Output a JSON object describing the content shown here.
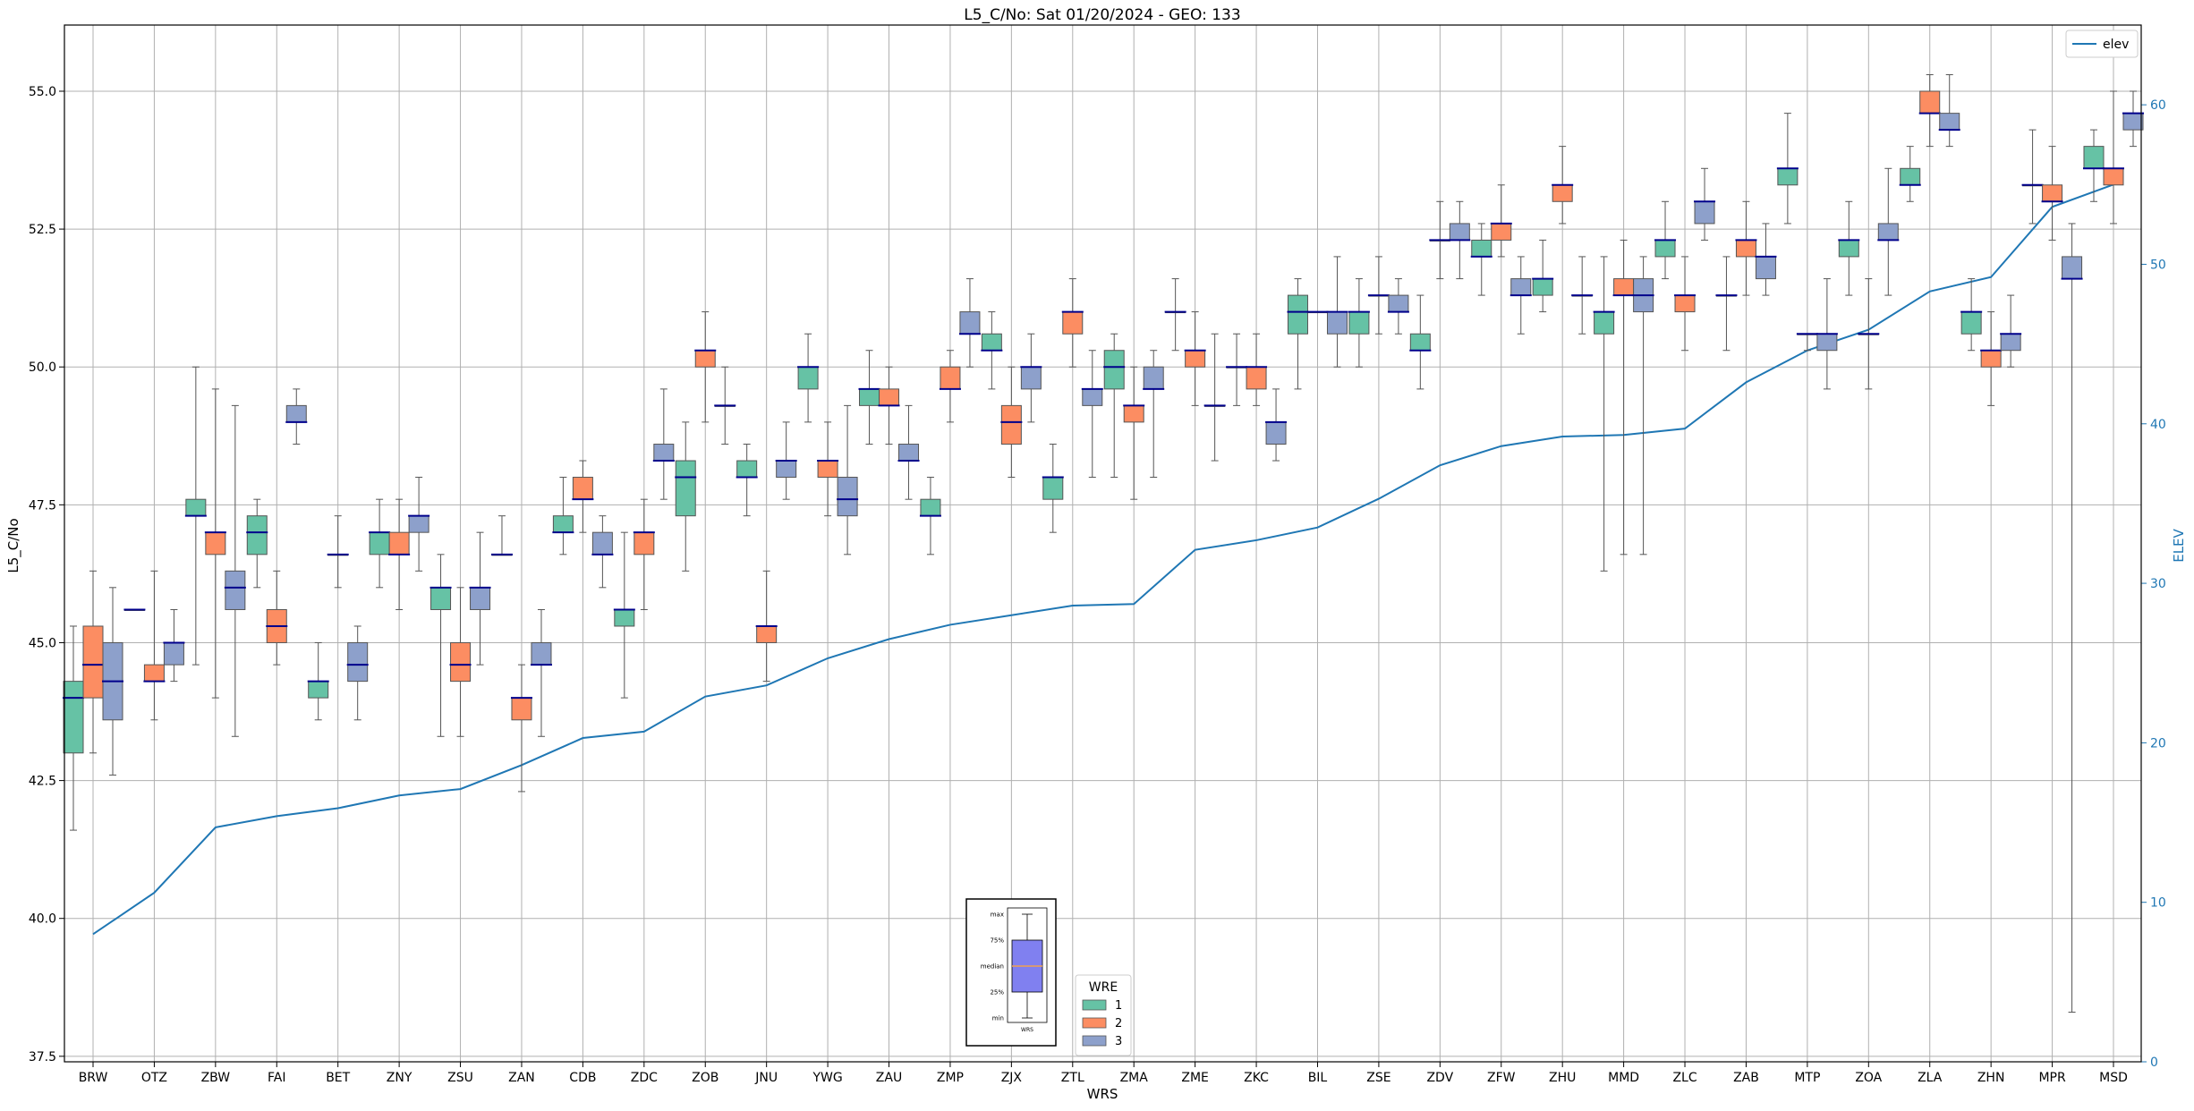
{
  "chart_data": {
    "type": "box",
    "title": "L5_C/No: Sat 01/20/2024 - GEO: 133",
    "xlabel": "WRS",
    "ylabel": "L5_C/No",
    "y2label": "ELEV",
    "ylim": [
      37.4,
      56.2
    ],
    "y2lim": [
      0,
      65
    ],
    "yticks": [
      "37.5",
      "40.0",
      "42.5",
      "45.0",
      "47.5",
      "50.0",
      "52.5",
      "55.0"
    ],
    "y2ticks": [
      "0",
      "10",
      "20",
      "30",
      "40",
      "50",
      "60"
    ],
    "grid": true,
    "categories": [
      "BRW",
      "OTZ",
      "ZBW",
      "FAI",
      "BET",
      "ZNY",
      "ZSU",
      "ZAN",
      "CDB",
      "ZDC",
      "ZOB",
      "JNU",
      "YWG",
      "ZAU",
      "ZMP",
      "ZJX",
      "ZTL",
      "ZMA",
      "ZME",
      "ZKC",
      "BIL",
      "ZSE",
      "ZDV",
      "ZFW",
      "ZHU",
      "MMD",
      "ZLC",
      "ZAB",
      "MTP",
      "ZOA",
      "ZLA",
      "ZHN",
      "MPR",
      "MSD"
    ],
    "wre_colors": {
      "1": "#66c2a5",
      "2": "#fc8d62",
      "3": "#8da0cb"
    },
    "line_series": {
      "name": "elev",
      "color": "#1f77b4",
      "values": [
        8.0,
        10.6,
        14.7,
        15.4,
        15.9,
        16.7,
        17.1,
        18.6,
        20.3,
        20.7,
        22.9,
        23.6,
        25.3,
        26.5,
        27.4,
        28.0,
        28.6,
        28.7,
        32.1,
        32.7,
        33.5,
        35.3,
        37.4,
        38.6,
        39.2,
        39.3,
        39.7,
        42.6,
        44.6,
        45.9,
        48.3,
        49.2,
        53.6,
        55.0
      ]
    },
    "boxes": [
      {
        "station": "BRW",
        "wre": 1,
        "min": 41.6,
        "q1": 43.0,
        "median": 44.0,
        "q3": 44.3,
        "max": 45.3
      },
      {
        "station": "BRW",
        "wre": 2,
        "min": 43.0,
        "q1": 44.0,
        "median": 44.6,
        "q3": 45.3,
        "max": 46.3
      },
      {
        "station": "BRW",
        "wre": 3,
        "min": 42.6,
        "q1": 43.6,
        "median": 44.3,
        "q3": 45.0,
        "max": 46.0
      },
      {
        "station": "OTZ",
        "wre": 1,
        "min": 45.6,
        "q1": 45.6,
        "median": 45.6,
        "q3": 45.6,
        "max": 45.6
      },
      {
        "station": "OTZ",
        "wre": 2,
        "min": 43.6,
        "q1": 44.3,
        "median": 44.3,
        "q3": 44.6,
        "max": 46.3
      },
      {
        "station": "OTZ",
        "wre": 3,
        "min": 44.3,
        "q1": 44.6,
        "median": 45.0,
        "q3": 45.0,
        "max": 45.6
      },
      {
        "station": "ZBW",
        "wre": 1,
        "min": 44.6,
        "q1": 47.3,
        "median": 47.3,
        "q3": 47.6,
        "max": 50.0
      },
      {
        "station": "ZBW",
        "wre": 2,
        "min": 44.0,
        "q1": 46.6,
        "median": 47.0,
        "q3": 47.0,
        "max": 49.6
      },
      {
        "station": "ZBW",
        "wre": 3,
        "min": 43.3,
        "q1": 45.6,
        "median": 46.0,
        "q3": 46.3,
        "max": 49.3
      },
      {
        "station": "FAI",
        "wre": 1,
        "min": 46.0,
        "q1": 46.6,
        "median": 47.0,
        "q3": 47.3,
        "max": 47.6
      },
      {
        "station": "FAI",
        "wre": 2,
        "min": 44.6,
        "q1": 45.0,
        "median": 45.3,
        "q3": 45.6,
        "max": 46.3
      },
      {
        "station": "FAI",
        "wre": 3,
        "min": 48.6,
        "q1": 49.0,
        "median": 49.0,
        "q3": 49.3,
        "max": 49.6
      },
      {
        "station": "BET",
        "wre": 1,
        "min": 43.6,
        "q1": 44.0,
        "median": 44.3,
        "q3": 44.3,
        "max": 45.0
      },
      {
        "station": "BET",
        "wre": 2,
        "min": 46.0,
        "q1": 46.6,
        "median": 46.6,
        "q3": 46.6,
        "max": 47.3
      },
      {
        "station": "BET",
        "wre": 3,
        "min": 43.6,
        "q1": 44.3,
        "median": 44.6,
        "q3": 45.0,
        "max": 45.3
      },
      {
        "station": "ZNY",
        "wre": 1,
        "min": 46.0,
        "q1": 46.6,
        "median": 47.0,
        "q3": 47.0,
        "max": 47.6
      },
      {
        "station": "ZNY",
        "wre": 2,
        "min": 45.6,
        "q1": 46.6,
        "median": 46.6,
        "q3": 47.0,
        "max": 47.6
      },
      {
        "station": "ZNY",
        "wre": 3,
        "min": 46.3,
        "q1": 47.0,
        "median": 47.3,
        "q3": 47.3,
        "max": 48.0
      },
      {
        "station": "ZSU",
        "wre": 1,
        "min": 43.3,
        "q1": 45.6,
        "median": 46.0,
        "q3": 46.0,
        "max": 46.6
      },
      {
        "station": "ZSU",
        "wre": 2,
        "min": 43.3,
        "q1": 44.3,
        "median": 44.6,
        "q3": 45.0,
        "max": 46.0
      },
      {
        "station": "ZSU",
        "wre": 3,
        "min": 44.6,
        "q1": 45.6,
        "median": 46.0,
        "q3": 46.0,
        "max": 47.0
      },
      {
        "station": "ZAN",
        "wre": 1,
        "min": 46.6,
        "q1": 46.6,
        "median": 46.6,
        "q3": 46.6,
        "max": 47.3
      },
      {
        "station": "ZAN",
        "wre": 2,
        "min": 42.3,
        "q1": 43.6,
        "median": 44.0,
        "q3": 44.0,
        "max": 44.6
      },
      {
        "station": "ZAN",
        "wre": 3,
        "min": 43.3,
        "q1": 44.6,
        "median": 44.6,
        "q3": 45.0,
        "max": 45.6
      },
      {
        "station": "CDB",
        "wre": 1,
        "min": 46.6,
        "q1": 47.0,
        "median": 47.0,
        "q3": 47.3,
        "max": 48.0
      },
      {
        "station": "CDB",
        "wre": 2,
        "min": 47.0,
        "q1": 47.6,
        "median": 47.6,
        "q3": 48.0,
        "max": 48.3
      },
      {
        "station": "CDB",
        "wre": 3,
        "min": 46.0,
        "q1": 46.6,
        "median": 46.6,
        "q3": 47.0,
        "max": 47.3
      },
      {
        "station": "ZDC",
        "wre": 1,
        "min": 44.0,
        "q1": 45.3,
        "median": 45.6,
        "q3": 45.6,
        "max": 47.0
      },
      {
        "station": "ZDC",
        "wre": 2,
        "min": 45.6,
        "q1": 46.6,
        "median": 47.0,
        "q3": 47.0,
        "max": 47.6
      },
      {
        "station": "ZDC",
        "wre": 3,
        "min": 47.6,
        "q1": 48.3,
        "median": 48.3,
        "q3": 48.6,
        "max": 49.6
      },
      {
        "station": "ZOB",
        "wre": 1,
        "min": 46.3,
        "q1": 47.3,
        "median": 48.0,
        "q3": 48.3,
        "max": 49.0
      },
      {
        "station": "ZOB",
        "wre": 2,
        "min": 49.0,
        "q1": 50.0,
        "median": 50.3,
        "q3": 50.3,
        "max": 51.0
      },
      {
        "station": "ZOB",
        "wre": 3,
        "min": 48.6,
        "q1": 49.3,
        "median": 49.3,
        "q3": 49.3,
        "max": 50.0
      },
      {
        "station": "JNU",
        "wre": 1,
        "min": 47.3,
        "q1": 48.0,
        "median": 48.0,
        "q3": 48.3,
        "max": 48.6
      },
      {
        "station": "JNU",
        "wre": 2,
        "min": 44.3,
        "q1": 45.0,
        "median": 45.3,
        "q3": 45.3,
        "max": 46.3
      },
      {
        "station": "JNU",
        "wre": 3,
        "min": 47.6,
        "q1": 48.0,
        "median": 48.3,
        "q3": 48.3,
        "max": 49.0
      },
      {
        "station": "YWG",
        "wre": 1,
        "min": 49.0,
        "q1": 49.6,
        "median": 50.0,
        "q3": 50.0,
        "max": 50.6
      },
      {
        "station": "YWG",
        "wre": 2,
        "min": 47.3,
        "q1": 48.0,
        "median": 48.3,
        "q3": 48.3,
        "max": 49.0
      },
      {
        "station": "YWG",
        "wre": 3,
        "min": 46.6,
        "q1": 47.3,
        "median": 47.6,
        "q3": 48.0,
        "max": 49.3
      },
      {
        "station": "ZAU",
        "wre": 1,
        "min": 48.6,
        "q1": 49.3,
        "median": 49.6,
        "q3": 49.6,
        "max": 50.3
      },
      {
        "station": "ZAU",
        "wre": 2,
        "min": 48.6,
        "q1": 49.3,
        "median": 49.3,
        "q3": 49.6,
        "max": 50.0
      },
      {
        "station": "ZAU",
        "wre": 3,
        "min": 47.6,
        "q1": 48.3,
        "median": 48.3,
        "q3": 48.6,
        "max": 49.3
      },
      {
        "station": "ZMP",
        "wre": 1,
        "min": 46.6,
        "q1": 47.3,
        "median": 47.3,
        "q3": 47.6,
        "max": 48.0
      },
      {
        "station": "ZMP",
        "wre": 2,
        "min": 49.0,
        "q1": 49.6,
        "median": 49.6,
        "q3": 50.0,
        "max": 50.3
      },
      {
        "station": "ZMP",
        "wre": 3,
        "min": 50.0,
        "q1": 50.6,
        "median": 50.6,
        "q3": 51.0,
        "max": 51.6
      },
      {
        "station": "ZJX",
        "wre": 1,
        "min": 49.6,
        "q1": 50.3,
        "median": 50.3,
        "q3": 50.6,
        "max": 51.0
      },
      {
        "station": "ZJX",
        "wre": 2,
        "min": 48.0,
        "q1": 48.6,
        "median": 49.0,
        "q3": 49.3,
        "max": 50.0
      },
      {
        "station": "ZJX",
        "wre": 3,
        "min": 49.0,
        "q1": 49.6,
        "median": 50.0,
        "q3": 50.0,
        "max": 50.6
      },
      {
        "station": "ZTL",
        "wre": 1,
        "min": 47.0,
        "q1": 47.6,
        "median": 48.0,
        "q3": 48.0,
        "max": 48.6
      },
      {
        "station": "ZTL",
        "wre": 2,
        "min": 50.0,
        "q1": 50.6,
        "median": 51.0,
        "q3": 51.0,
        "max": 51.6
      },
      {
        "station": "ZTL",
        "wre": 3,
        "min": 48.0,
        "q1": 49.3,
        "median": 49.6,
        "q3": 49.6,
        "max": 50.3
      },
      {
        "station": "ZMA",
        "wre": 1,
        "min": 48.0,
        "q1": 49.6,
        "median": 50.0,
        "q3": 50.3,
        "max": 50.6
      },
      {
        "station": "ZMA",
        "wre": 2,
        "min": 47.6,
        "q1": 49.0,
        "median": 49.3,
        "q3": 49.3,
        "max": 50.0
      },
      {
        "station": "ZMA",
        "wre": 3,
        "min": 48.0,
        "q1": 49.6,
        "median": 49.6,
        "q3": 50.0,
        "max": 50.3
      },
      {
        "station": "ZME",
        "wre": 1,
        "min": 50.3,
        "q1": 51.0,
        "median": 51.0,
        "q3": 51.0,
        "max": 51.6
      },
      {
        "station": "ZME",
        "wre": 2,
        "min": 49.3,
        "q1": 50.0,
        "median": 50.3,
        "q3": 50.3,
        "max": 51.0
      },
      {
        "station": "ZME",
        "wre": 3,
        "min": 48.3,
        "q1": 49.3,
        "median": 49.3,
        "q3": 49.3,
        "max": 50.6
      },
      {
        "station": "ZKC",
        "wre": 1,
        "min": 49.3,
        "q1": 50.0,
        "median": 50.0,
        "q3": 50.0,
        "max": 50.6
      },
      {
        "station": "ZKC",
        "wre": 2,
        "min": 49.3,
        "q1": 49.6,
        "median": 50.0,
        "q3": 50.0,
        "max": 50.6
      },
      {
        "station": "ZKC",
        "wre": 3,
        "min": 48.3,
        "q1": 48.6,
        "median": 49.0,
        "q3": 49.0,
        "max": 49.6
      },
      {
        "station": "BIL",
        "wre": 1,
        "min": 49.6,
        "q1": 50.6,
        "median": 51.0,
        "q3": 51.3,
        "max": 51.6
      },
      {
        "station": "BIL",
        "wre": 2,
        "min": 51.0,
        "q1": 51.0,
        "median": 51.0,
        "q3": 51.0,
        "max": 51.0
      },
      {
        "station": "BIL",
        "wre": 3,
        "min": 50.0,
        "q1": 50.6,
        "median": 51.0,
        "q3": 51.0,
        "max": 52.0
      },
      {
        "station": "ZSE",
        "wre": 1,
        "min": 50.0,
        "q1": 50.6,
        "median": 51.0,
        "q3": 51.0,
        "max": 51.6
      },
      {
        "station": "ZSE",
        "wre": 2,
        "min": 50.6,
        "q1": 51.3,
        "median": 51.3,
        "q3": 51.3,
        "max": 52.0
      },
      {
        "station": "ZSE",
        "wre": 3,
        "min": 50.6,
        "q1": 51.0,
        "median": 51.0,
        "q3": 51.3,
        "max": 51.6
      },
      {
        "station": "ZDV",
        "wre": 1,
        "min": 49.6,
        "q1": 50.3,
        "median": 50.3,
        "q3": 50.6,
        "max": 51.3
      },
      {
        "station": "ZDV",
        "wre": 2,
        "min": 51.6,
        "q1": 52.3,
        "median": 52.3,
        "q3": 52.3,
        "max": 53.0
      },
      {
        "station": "ZDV",
        "wre": 3,
        "min": 51.6,
        "q1": 52.3,
        "median": 52.3,
        "q3": 52.6,
        "max": 53.0
      },
      {
        "station": "ZFW",
        "wre": 1,
        "min": 51.3,
        "q1": 52.0,
        "median": 52.0,
        "q3": 52.3,
        "max": 52.6
      },
      {
        "station": "ZFW",
        "wre": 2,
        "min": 52.0,
        "q1": 52.3,
        "median": 52.6,
        "q3": 52.6,
        "max": 53.3
      },
      {
        "station": "ZFW",
        "wre": 3,
        "min": 50.6,
        "q1": 51.3,
        "median": 51.3,
        "q3": 51.6,
        "max": 52.0
      },
      {
        "station": "ZHU",
        "wre": 1,
        "min": 51.0,
        "q1": 51.3,
        "median": 51.6,
        "q3": 51.6,
        "max": 52.3
      },
      {
        "station": "ZHU",
        "wre": 2,
        "min": 52.6,
        "q1": 53.0,
        "median": 53.3,
        "q3": 53.3,
        "max": 54.0
      },
      {
        "station": "ZHU",
        "wre": 3,
        "min": 50.6,
        "q1": 51.3,
        "median": 51.3,
        "q3": 51.3,
        "max": 52.0
      },
      {
        "station": "MMD",
        "wre": 1,
        "min": 46.3,
        "q1": 50.6,
        "median": 51.0,
        "q3": 51.0,
        "max": 52.0
      },
      {
        "station": "MMD",
        "wre": 2,
        "min": 46.6,
        "q1": 51.3,
        "median": 51.3,
        "q3": 51.6,
        "max": 52.3
      },
      {
        "station": "MMD",
        "wre": 3,
        "min": 46.6,
        "q1": 51.0,
        "median": 51.3,
        "q3": 51.6,
        "max": 52.0
      },
      {
        "station": "ZLC",
        "wre": 1,
        "min": 51.6,
        "q1": 52.0,
        "median": 52.3,
        "q3": 52.3,
        "max": 53.0
      },
      {
        "station": "ZLC",
        "wre": 2,
        "min": 50.3,
        "q1": 51.0,
        "median": 51.3,
        "q3": 51.3,
        "max": 52.0
      },
      {
        "station": "ZLC",
        "wre": 3,
        "min": 52.3,
        "q1": 52.6,
        "median": 53.0,
        "q3": 53.0,
        "max": 53.6
      },
      {
        "station": "ZAB",
        "wre": 1,
        "min": 50.3,
        "q1": 51.3,
        "median": 51.3,
        "q3": 51.3,
        "max": 52.0
      },
      {
        "station": "ZAB",
        "wre": 2,
        "min": 51.3,
        "q1": 52.0,
        "median": 52.3,
        "q3": 52.3,
        "max": 53.0
      },
      {
        "station": "ZAB",
        "wre": 3,
        "min": 51.3,
        "q1": 51.6,
        "median": 52.0,
        "q3": 52.0,
        "max": 52.6
      },
      {
        "station": "MTP",
        "wre": 1,
        "min": 52.6,
        "q1": 53.3,
        "median": 53.6,
        "q3": 53.6,
        "max": 54.6
      },
      {
        "station": "MTP",
        "wre": 2,
        "min": 50.3,
        "q1": 50.6,
        "median": 50.6,
        "q3": 50.6,
        "max": 50.6
      },
      {
        "station": "MTP",
        "wre": 3,
        "min": 49.6,
        "q1": 50.3,
        "median": 50.6,
        "q3": 50.6,
        "max": 51.6
      },
      {
        "station": "ZOA",
        "wre": 1,
        "min": 51.3,
        "q1": 52.0,
        "median": 52.3,
        "q3": 52.3,
        "max": 53.0
      },
      {
        "station": "ZOA",
        "wre": 2,
        "min": 49.6,
        "q1": 50.6,
        "median": 50.6,
        "q3": 50.6,
        "max": 51.6
      },
      {
        "station": "ZOA",
        "wre": 3,
        "min": 51.3,
        "q1": 52.3,
        "median": 52.3,
        "q3": 52.6,
        "max": 53.6
      },
      {
        "station": "ZLA",
        "wre": 1,
        "min": 53.0,
        "q1": 53.3,
        "median": 53.3,
        "q3": 53.6,
        "max": 54.0
      },
      {
        "station": "ZLA",
        "wre": 2,
        "min": 54.0,
        "q1": 54.6,
        "median": 54.6,
        "q3": 55.0,
        "max": 55.3
      },
      {
        "station": "ZLA",
        "wre": 3,
        "min": 54.0,
        "q1": 54.3,
        "median": 54.3,
        "q3": 54.6,
        "max": 55.3
      },
      {
        "station": "ZHN",
        "wre": 1,
        "min": 50.3,
        "q1": 50.6,
        "median": 51.0,
        "q3": 51.0,
        "max": 51.6
      },
      {
        "station": "ZHN",
        "wre": 2,
        "min": 49.3,
        "q1": 50.0,
        "median": 50.3,
        "q3": 50.3,
        "max": 51.0
      },
      {
        "station": "ZHN",
        "wre": 3,
        "min": 50.0,
        "q1": 50.3,
        "median": 50.6,
        "q3": 50.6,
        "max": 51.3
      },
      {
        "station": "MPR",
        "wre": 1,
        "min": 52.6,
        "q1": 53.3,
        "median": 53.3,
        "q3": 53.3,
        "max": 54.3
      },
      {
        "station": "MPR",
        "wre": 2,
        "min": 52.3,
        "q1": 53.0,
        "median": 53.0,
        "q3": 53.3,
        "max": 54.0
      },
      {
        "station": "MPR",
        "wre": 3,
        "min": 38.3,
        "q1": 51.6,
        "median": 51.6,
        "q3": 52.0,
        "max": 52.6
      },
      {
        "station": "MSD",
        "wre": 1,
        "min": 53.0,
        "q1": 53.6,
        "median": 53.6,
        "q3": 54.0,
        "max": 54.3
      },
      {
        "station": "MSD",
        "wre": 2,
        "min": 52.6,
        "q1": 53.3,
        "median": 53.6,
        "q3": 53.6,
        "max": 55.0
      },
      {
        "station": "MSD",
        "wre": 3,
        "min": 54.0,
        "q1": 54.3,
        "median": 54.6,
        "q3": 54.6,
        "max": 55.0
      }
    ],
    "legend_elev": {
      "label": "elev",
      "position": "top-right"
    },
    "legend_wre": {
      "title": "WRE",
      "labels": [
        "1",
        "2",
        "3"
      ],
      "position": "bottom-center"
    },
    "key_inset": {
      "labels": [
        "max",
        "75%",
        "median",
        "25%",
        "min"
      ],
      "xlabel": "WRS",
      "box_color": "#8080f0",
      "median_color": "#f0a050"
    }
  }
}
